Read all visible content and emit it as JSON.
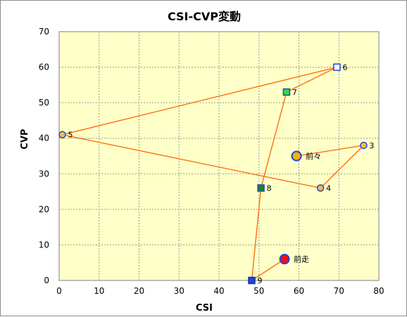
{
  "chart_data": {
    "type": "scatter",
    "title": "CSI-CVP変動",
    "xlabel": "CSI",
    "ylabel": "CVP",
    "xlim": [
      0,
      80
    ],
    "ylim": [
      0,
      70
    ],
    "xticks": [
      0,
      10,
      20,
      30,
      40,
      50,
      60,
      70,
      80
    ],
    "yticks": [
      0,
      10,
      20,
      30,
      40,
      50,
      60,
      70
    ],
    "grid": true,
    "colors": {
      "plot_bg": "#ffffc8",
      "line": "#ff6600",
      "grid": "#9a9a9a"
    },
    "path_order": [
      "前々",
      "3",
      "4",
      "5",
      "6",
      "7",
      "8",
      "9",
      "前走"
    ],
    "points": [
      {
        "label": "前々",
        "x": 59.4,
        "y": 35,
        "shape": "circle",
        "size": "large",
        "fill": "#f0b400",
        "stroke": "#2244dd"
      },
      {
        "label": "3",
        "x": 76.2,
        "y": 38,
        "shape": "circle",
        "size": "small",
        "fill": "#f0c040",
        "stroke": "#2244dd"
      },
      {
        "label": "4",
        "x": 65.4,
        "y": 26,
        "shape": "circle",
        "size": "small",
        "fill": "#f0c040",
        "stroke": "#2244dd"
      },
      {
        "label": "5",
        "x": 0.8,
        "y": 41,
        "shape": "circle",
        "size": "small",
        "fill": "#f0c040",
        "stroke": "#2244dd"
      },
      {
        "label": "6",
        "x": 69.5,
        "y": 60,
        "shape": "square",
        "size": "small",
        "fill": "#ffffff",
        "stroke": "#2244dd"
      },
      {
        "label": "7",
        "x": 56.9,
        "y": 53,
        "shape": "square",
        "size": "small",
        "fill": "#33dd33",
        "stroke": "#2244dd"
      },
      {
        "label": "8",
        "x": 50.5,
        "y": 26,
        "shape": "square",
        "size": "small",
        "fill": "#138a13",
        "stroke": "#2244dd"
      },
      {
        "label": "9",
        "x": 48.2,
        "y": 0,
        "shape": "square",
        "size": "small",
        "fill": "#2244dd",
        "stroke": "#1133aa"
      },
      {
        "label": "前走",
        "x": 56.4,
        "y": 6,
        "shape": "circle",
        "size": "large",
        "fill": "#ee1111",
        "stroke": "#2244dd"
      }
    ]
  }
}
